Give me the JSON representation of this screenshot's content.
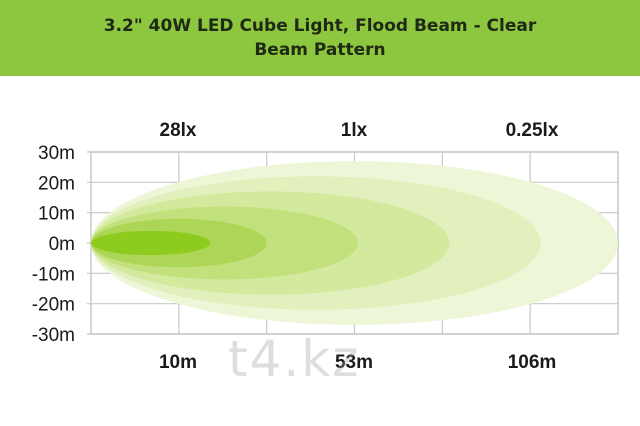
{
  "title": {
    "line1": "3.2\" 40W LED Cube Light, Flood Beam - Clear",
    "line2": "Beam Pattern"
  },
  "watermark": "t4.kz",
  "colors": {
    "banner": "#8dc63f",
    "title_text": "#1f2a14",
    "grid": "#c8c8c8",
    "label_text": "#1a1a1a"
  },
  "chart_data": {
    "type": "area",
    "title": "3.2\" 40W LED Cube Light, Flood Beam - Clear Beam Pattern",
    "xlabel": "",
    "ylabel": "",
    "y_unit": "m",
    "x_unit": "m",
    "ylim": [
      -30,
      30
    ],
    "xlim": [
      0,
      150
    ],
    "y_ticks": [
      30,
      20,
      10,
      0,
      -10,
      -20,
      -30
    ],
    "y_tick_labels": [
      "30m",
      "20m",
      "10m",
      "0m",
      "-10m",
      "-20m",
      "-30m"
    ],
    "x_ticks": [
      10,
      53,
      106
    ],
    "x_tick_labels": [
      "10m",
      "53m",
      "106m"
    ],
    "lux_labels": [
      {
        "x": 10,
        "label": "28lx"
      },
      {
        "x": 53,
        "label": "1lx"
      },
      {
        "x": 106,
        "label": "0.25lx"
      }
    ],
    "grid": true,
    "lobes": [
      {
        "reach": 150,
        "half_width": 27,
        "color": "#eef6d8"
      },
      {
        "reach": 128,
        "half_width": 22,
        "color": "#e2f0bd"
      },
      {
        "reach": 102,
        "half_width": 17,
        "color": "#d3e99d"
      },
      {
        "reach": 76,
        "half_width": 12,
        "color": "#c2e07b"
      },
      {
        "reach": 50,
        "half_width": 8,
        "color": "#aed656"
      },
      {
        "reach": 34,
        "half_width": 4,
        "color": "#8dcb1e"
      }
    ]
  }
}
